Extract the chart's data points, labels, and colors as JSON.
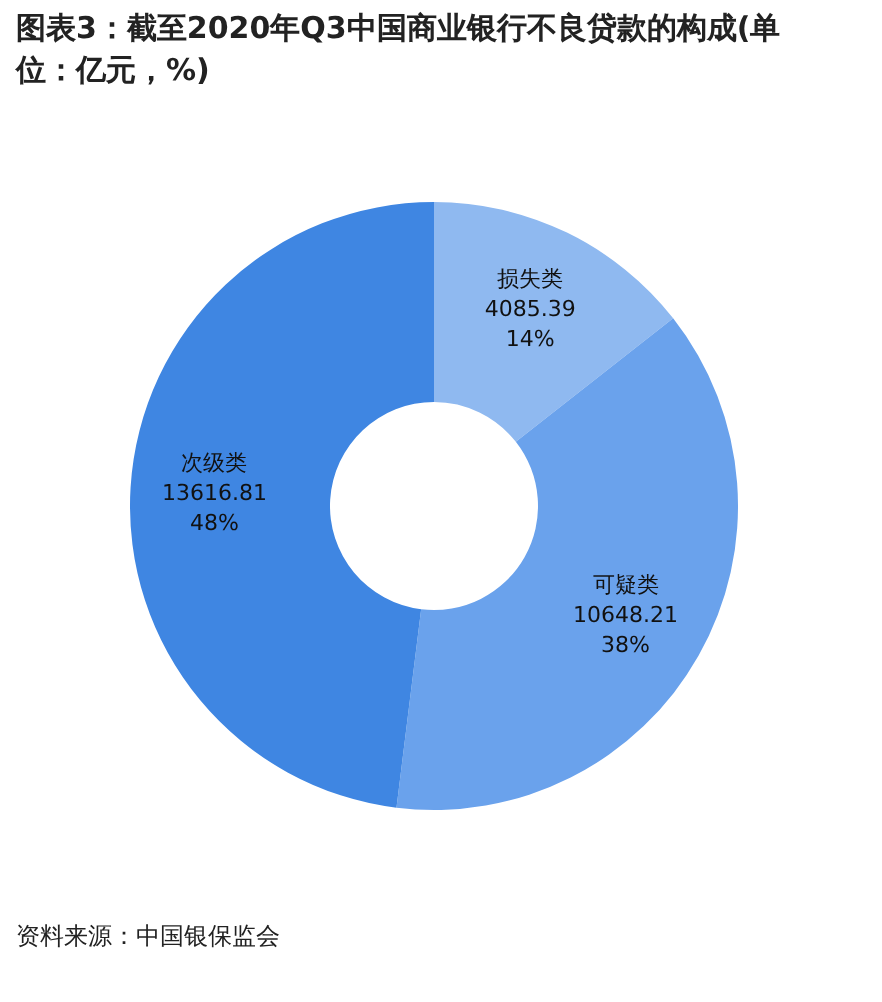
{
  "chart_data": {
    "type": "donut",
    "title": "图表3：截至2020年Q3中国商业银行不良贷款的构成(单位：亿元，%)",
    "categories": [
      "损失类",
      "可疑类",
      "次级类"
    ],
    "values": [
      4085.39,
      10648.21,
      13616.81
    ],
    "colors": [
      "#8fb9f0",
      "#6aa2ec",
      "#3f86e2"
    ],
    "value_labels": [
      "4085.39\n14%",
      "10648.21\n38%",
      "13616.81\n48%"
    ],
    "annotations": [
      "资料来源：中国银保监会"
    ]
  }
}
